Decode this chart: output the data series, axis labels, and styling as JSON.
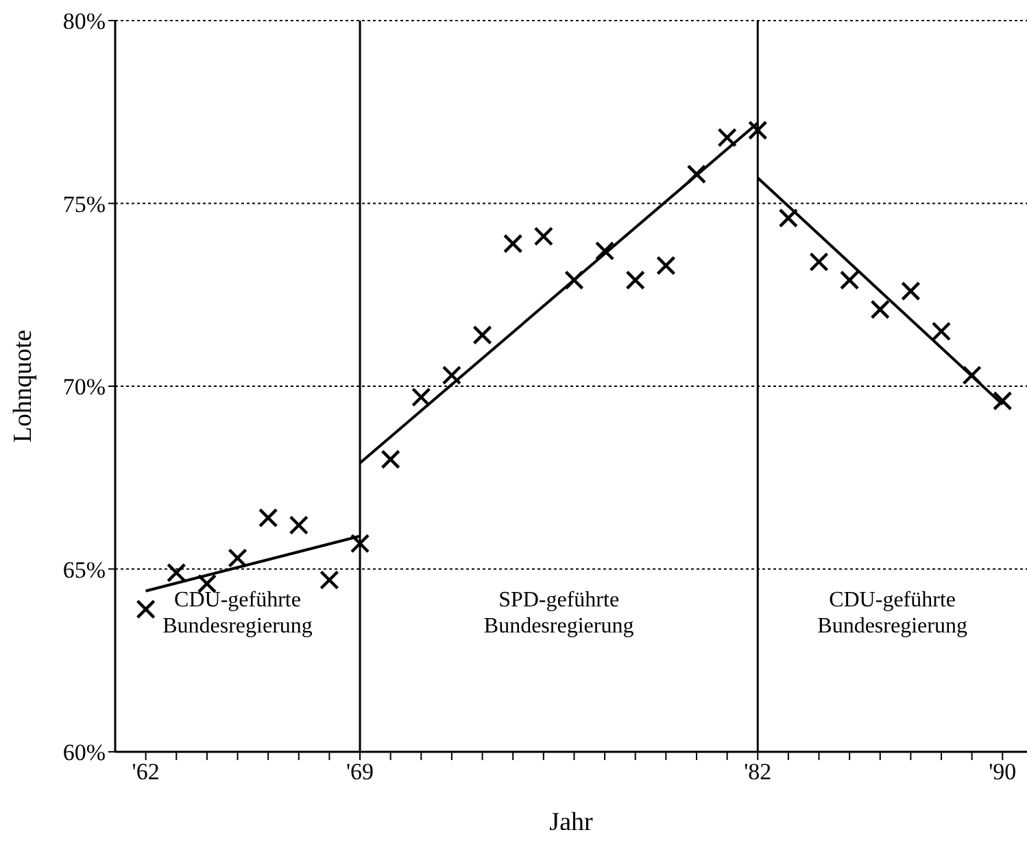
{
  "chart_data": {
    "type": "scatter",
    "xlabel": "Jahr",
    "ylabel": "Lohnquote",
    "xlim": [
      1961,
      1990.8
    ],
    "ylim": [
      60,
      80
    ],
    "xticks": [
      {
        "value": 1962,
        "label": "'62"
      },
      {
        "value": 1963,
        "label": null
      },
      {
        "value": 1964,
        "label": null
      },
      {
        "value": 1965,
        "label": null
      },
      {
        "value": 1966,
        "label": null
      },
      {
        "value": 1967,
        "label": null
      },
      {
        "value": 1968,
        "label": null
      },
      {
        "value": 1969,
        "label": "'69"
      },
      {
        "value": 1970,
        "label": null
      },
      {
        "value": 1971,
        "label": null
      },
      {
        "value": 1972,
        "label": null
      },
      {
        "value": 1973,
        "label": null
      },
      {
        "value": 1974,
        "label": null
      },
      {
        "value": 1975,
        "label": null
      },
      {
        "value": 1976,
        "label": null
      },
      {
        "value": 1977,
        "label": null
      },
      {
        "value": 1978,
        "label": null
      },
      {
        "value": 1979,
        "label": null
      },
      {
        "value": 1980,
        "label": null
      },
      {
        "value": 1981,
        "label": null
      },
      {
        "value": 1982,
        "label": "'82"
      },
      {
        "value": 1983,
        "label": null
      },
      {
        "value": 1984,
        "label": null
      },
      {
        "value": 1985,
        "label": null
      },
      {
        "value": 1986,
        "label": null
      },
      {
        "value": 1987,
        "label": null
      },
      {
        "value": 1988,
        "label": null
      },
      {
        "value": 1989,
        "label": null
      },
      {
        "value": 1990,
        "label": "'90"
      }
    ],
    "yticks": [
      {
        "value": 60,
        "label": "60%"
      },
      {
        "value": 65,
        "label": "65%"
      },
      {
        "value": 70,
        "label": "70%"
      },
      {
        "value": 75,
        "label": "75%"
      },
      {
        "value": 80,
        "label": "80%"
      }
    ],
    "grid": "y",
    "x": [
      1962,
      1963,
      1964,
      1965,
      1966,
      1967,
      1968,
      1969,
      1970,
      1971,
      1972,
      1973,
      1974,
      1975,
      1976,
      1977,
      1978,
      1979,
      1980,
      1981,
      1982,
      1983,
      1984,
      1985,
      1986,
      1987,
      1988,
      1989,
      1990
    ],
    "series": [
      {
        "marker": "cross",
        "color": "#000000",
        "values": [
          63.9,
          64.9,
          64.6,
          65.3,
          66.4,
          66.2,
          64.7,
          65.7,
          68.0,
          69.7,
          70.3,
          71.4,
          73.9,
          74.1,
          72.9,
          73.7,
          72.9,
          73.3,
          75.8,
          76.8,
          77.0,
          74.6,
          73.4,
          72.9,
          72.1,
          72.6,
          71.5,
          70.3,
          69.6
        ]
      },
      {
        "type": "line",
        "marker": "none",
        "color": "#000000",
        "x": [
          1962,
          1969
        ],
        "values": [
          64.4,
          65.9
        ]
      },
      {
        "type": "line",
        "marker": "none",
        "color": "#000000",
        "x": [
          1969,
          1982
        ],
        "values": [
          67.9,
          77.2
        ]
      },
      {
        "type": "line",
        "marker": "none",
        "color": "#000000",
        "x": [
          1982,
          1990
        ],
        "values": [
          75.7,
          69.5
        ]
      }
    ],
    "ref_lines": [
      {
        "axis": "x",
        "value": 1969,
        "color": "#000000",
        "line_style": "solid"
      },
      {
        "axis": "x",
        "value": 1982,
        "color": "#000000",
        "line_style": "solid"
      }
    ],
    "annotations": [
      "CDU-geführte\nBundesregierung",
      "SPD-geführte\nBundesregierung",
      "CDU-geführte\nBundesregierung"
    ]
  }
}
